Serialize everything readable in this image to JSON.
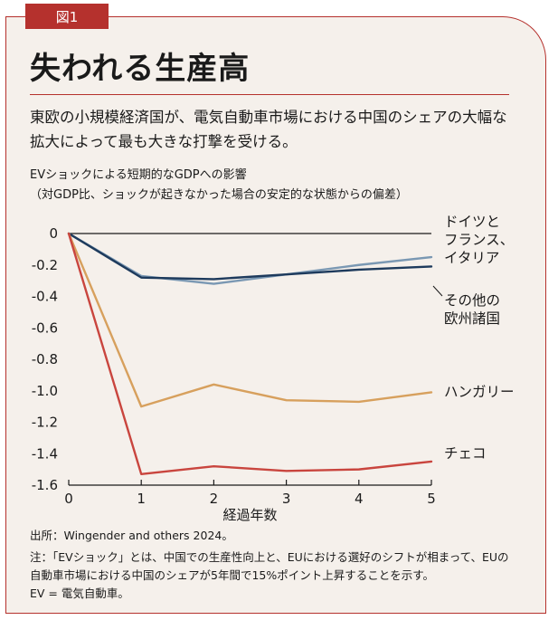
{
  "figure_label": "図1",
  "title": "失われる生産高",
  "subtitle": "東欧の小規模経済国が、電気自動車市場における中国のシェアの大幅な拡大によって最も大きな打撃を受ける。",
  "chart_title_line1": "EVショックによる短期的なGDPへの影響",
  "chart_title_line2": "（対GDP比、ショックが起きなかった場合の安定的な状態からの偏差）",
  "source": "出所：Wingender and others 2024。",
  "note_line1": "注：「EVショック」とは、中国での生産性向上と、EUにおける選好のシフトが相まって、EUの",
  "note_line2": "自動車市場における中国のシェアが5年間で15%ポイント上昇することを示す。",
  "note_line3": "EV = 電気自動車。",
  "colors": {
    "accent": "#b5312d",
    "background": "#f5f0eb"
  },
  "chart_data": {
    "type": "line",
    "xlabel": "経過年数",
    "ylabel": "",
    "x": [
      0,
      1,
      2,
      3,
      4,
      5
    ],
    "x_tick_labels": [
      "0",
      "1",
      "2",
      "3",
      "4",
      "5"
    ],
    "y_ticks": [
      0,
      -0.2,
      -0.4,
      -0.6,
      -0.8,
      -1.0,
      -1.2,
      -1.4,
      -1.6
    ],
    "y_tick_labels": [
      "0",
      "-0.2",
      "-0.4",
      "-0.6",
      "-0.8",
      "-1.0",
      "-1.2",
      "-1.4",
      "-1.6"
    ],
    "ylim": [
      -1.6,
      0
    ],
    "xlim": [
      0,
      5
    ],
    "series": [
      {
        "name": "ドイツとフランス、イタリア",
        "label_lines": [
          "ドイツと",
          "フランス、",
          "イタリア"
        ],
        "color": "#7a98b3",
        "values": [
          0,
          -0.27,
          -0.32,
          -0.26,
          -0.2,
          -0.15
        ]
      },
      {
        "name": "その他の欧州諸国",
        "label_lines": [
          "その他の",
          "欧州諸国"
        ],
        "color": "#1d3a5c",
        "values": [
          0,
          -0.28,
          -0.29,
          -0.26,
          -0.23,
          -0.21
        ]
      },
      {
        "name": "ハンガリー",
        "label_lines": [
          "ハンガリー"
        ],
        "color": "#d7a05d",
        "values": [
          0,
          -1.1,
          -0.96,
          -1.06,
          -1.07,
          -1.01
        ]
      },
      {
        "name": "チェコ",
        "label_lines": [
          "チェコ"
        ],
        "color": "#c9453e",
        "values": [
          0,
          -1.53,
          -1.48,
          -1.51,
          -1.5,
          -1.45
        ]
      }
    ]
  }
}
